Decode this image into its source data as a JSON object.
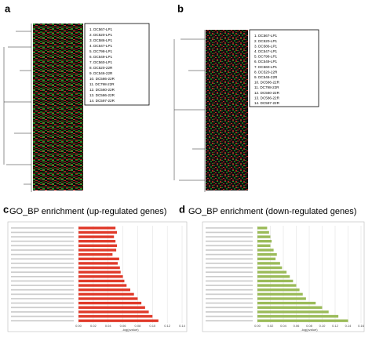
{
  "panels": [
    {
      "label": "a",
      "legend": [
        "1.   DC567-LP1",
        "2.   DC520-LP1",
        "3.   DC586-LP1",
        "4.   DC547-LP1",
        "5.   DC798-LP1",
        "6.   DC549-LP1",
        "7.   DC560-LP1",
        "8.   DC520-22R",
        "9.   DC546-22R",
        "10.  DC586-22R",
        "11.  DC798-22R",
        "12.  DC560-22R",
        "13.  DC586-22R",
        "14.  DC597-22R"
      ]
    },
    {
      "label": "b",
      "legend": [
        "1.   DC567-LP1",
        "2.   DC520-LP1",
        "3.   DC586-LP1",
        "4.   DC547-LP1",
        "5.   DC798-LP1",
        "6.   DC549-LP1",
        "7.   DC560-LP1",
        "8.   DC520-22R",
        "9.   DC546-22R",
        "10.  DC586-22R",
        "11.  DC798-22R",
        "12.  DC560-22R",
        "13.  DC586-22R",
        "14.  DC597-22R"
      ]
    }
  ],
  "chart_data": [
    {
      "type": "hbar",
      "panel_label": "c",
      "title": "GO_BP enrichment (up-regulated genes)",
      "x_label": "-log(pvalue)",
      "color": "#e03a2a",
      "categories": [
        null,
        null,
        null,
        null,
        null,
        null,
        null,
        null,
        null,
        null,
        null,
        null,
        null,
        null,
        null,
        null,
        null,
        null,
        null,
        null,
        null,
        null
      ],
      "values": [
        0.05,
        0.052,
        0.048,
        0.05,
        0.052,
        0.051,
        0.046,
        0.055,
        0.053,
        0.056,
        0.057,
        0.06,
        0.062,
        0.065,
        0.07,
        0.075,
        0.08,
        0.085,
        0.09,
        0.095,
        0.1,
        0.108
      ],
      "xlim": [
        0,
        0.14
      ],
      "xticks": [
        {
          "value": 0,
          "label": "0.00"
        },
        {
          "value": 0.02,
          "label": "0.02"
        },
        {
          "value": 0.04,
          "label": "0.04"
        },
        {
          "value": 0.06,
          "label": "0.06"
        },
        {
          "value": 0.08,
          "label": "0.08"
        },
        {
          "value": 0.1,
          "label": "0.10"
        },
        {
          "value": 0.12,
          "label": "0.12"
        },
        {
          "value": 0.14,
          "label": "0.14"
        }
      ],
      "grid": true
    },
    {
      "type": "hbar",
      "panel_label": "d",
      "title": "GO_BP enrichment (down-regulated genes)",
      "x_label": "-log(pvalue)",
      "color": "#9bbb59",
      "categories": [
        null,
        null,
        null,
        null,
        null,
        null,
        null,
        null,
        null,
        null,
        null,
        null,
        null,
        null,
        null,
        null,
        null,
        null,
        null,
        null,
        null,
        null
      ],
      "values": [
        0.015,
        0.018,
        0.02,
        0.022,
        0.02,
        0.025,
        0.03,
        0.028,
        0.035,
        0.038,
        0.045,
        0.05,
        0.055,
        0.06,
        0.065,
        0.07,
        0.075,
        0.09,
        0.1,
        0.11,
        0.125,
        0.14
      ],
      "xlim": [
        0,
        0.16
      ],
      "xticks": [
        {
          "value": 0,
          "label": "0.00"
        },
        {
          "value": 0.02,
          "label": "0.02"
        },
        {
          "value": 0.04,
          "label": "0.04"
        },
        {
          "value": 0.06,
          "label": "0.06"
        },
        {
          "value": 0.08,
          "label": "0.08"
        },
        {
          "value": 0.1,
          "label": "0.10"
        },
        {
          "value": 0.12,
          "label": "0.12"
        },
        {
          "value": 0.14,
          "label": "0.14"
        },
        {
          "value": 0.16,
          "label": "0.16"
        }
      ],
      "grid": true
    }
  ]
}
